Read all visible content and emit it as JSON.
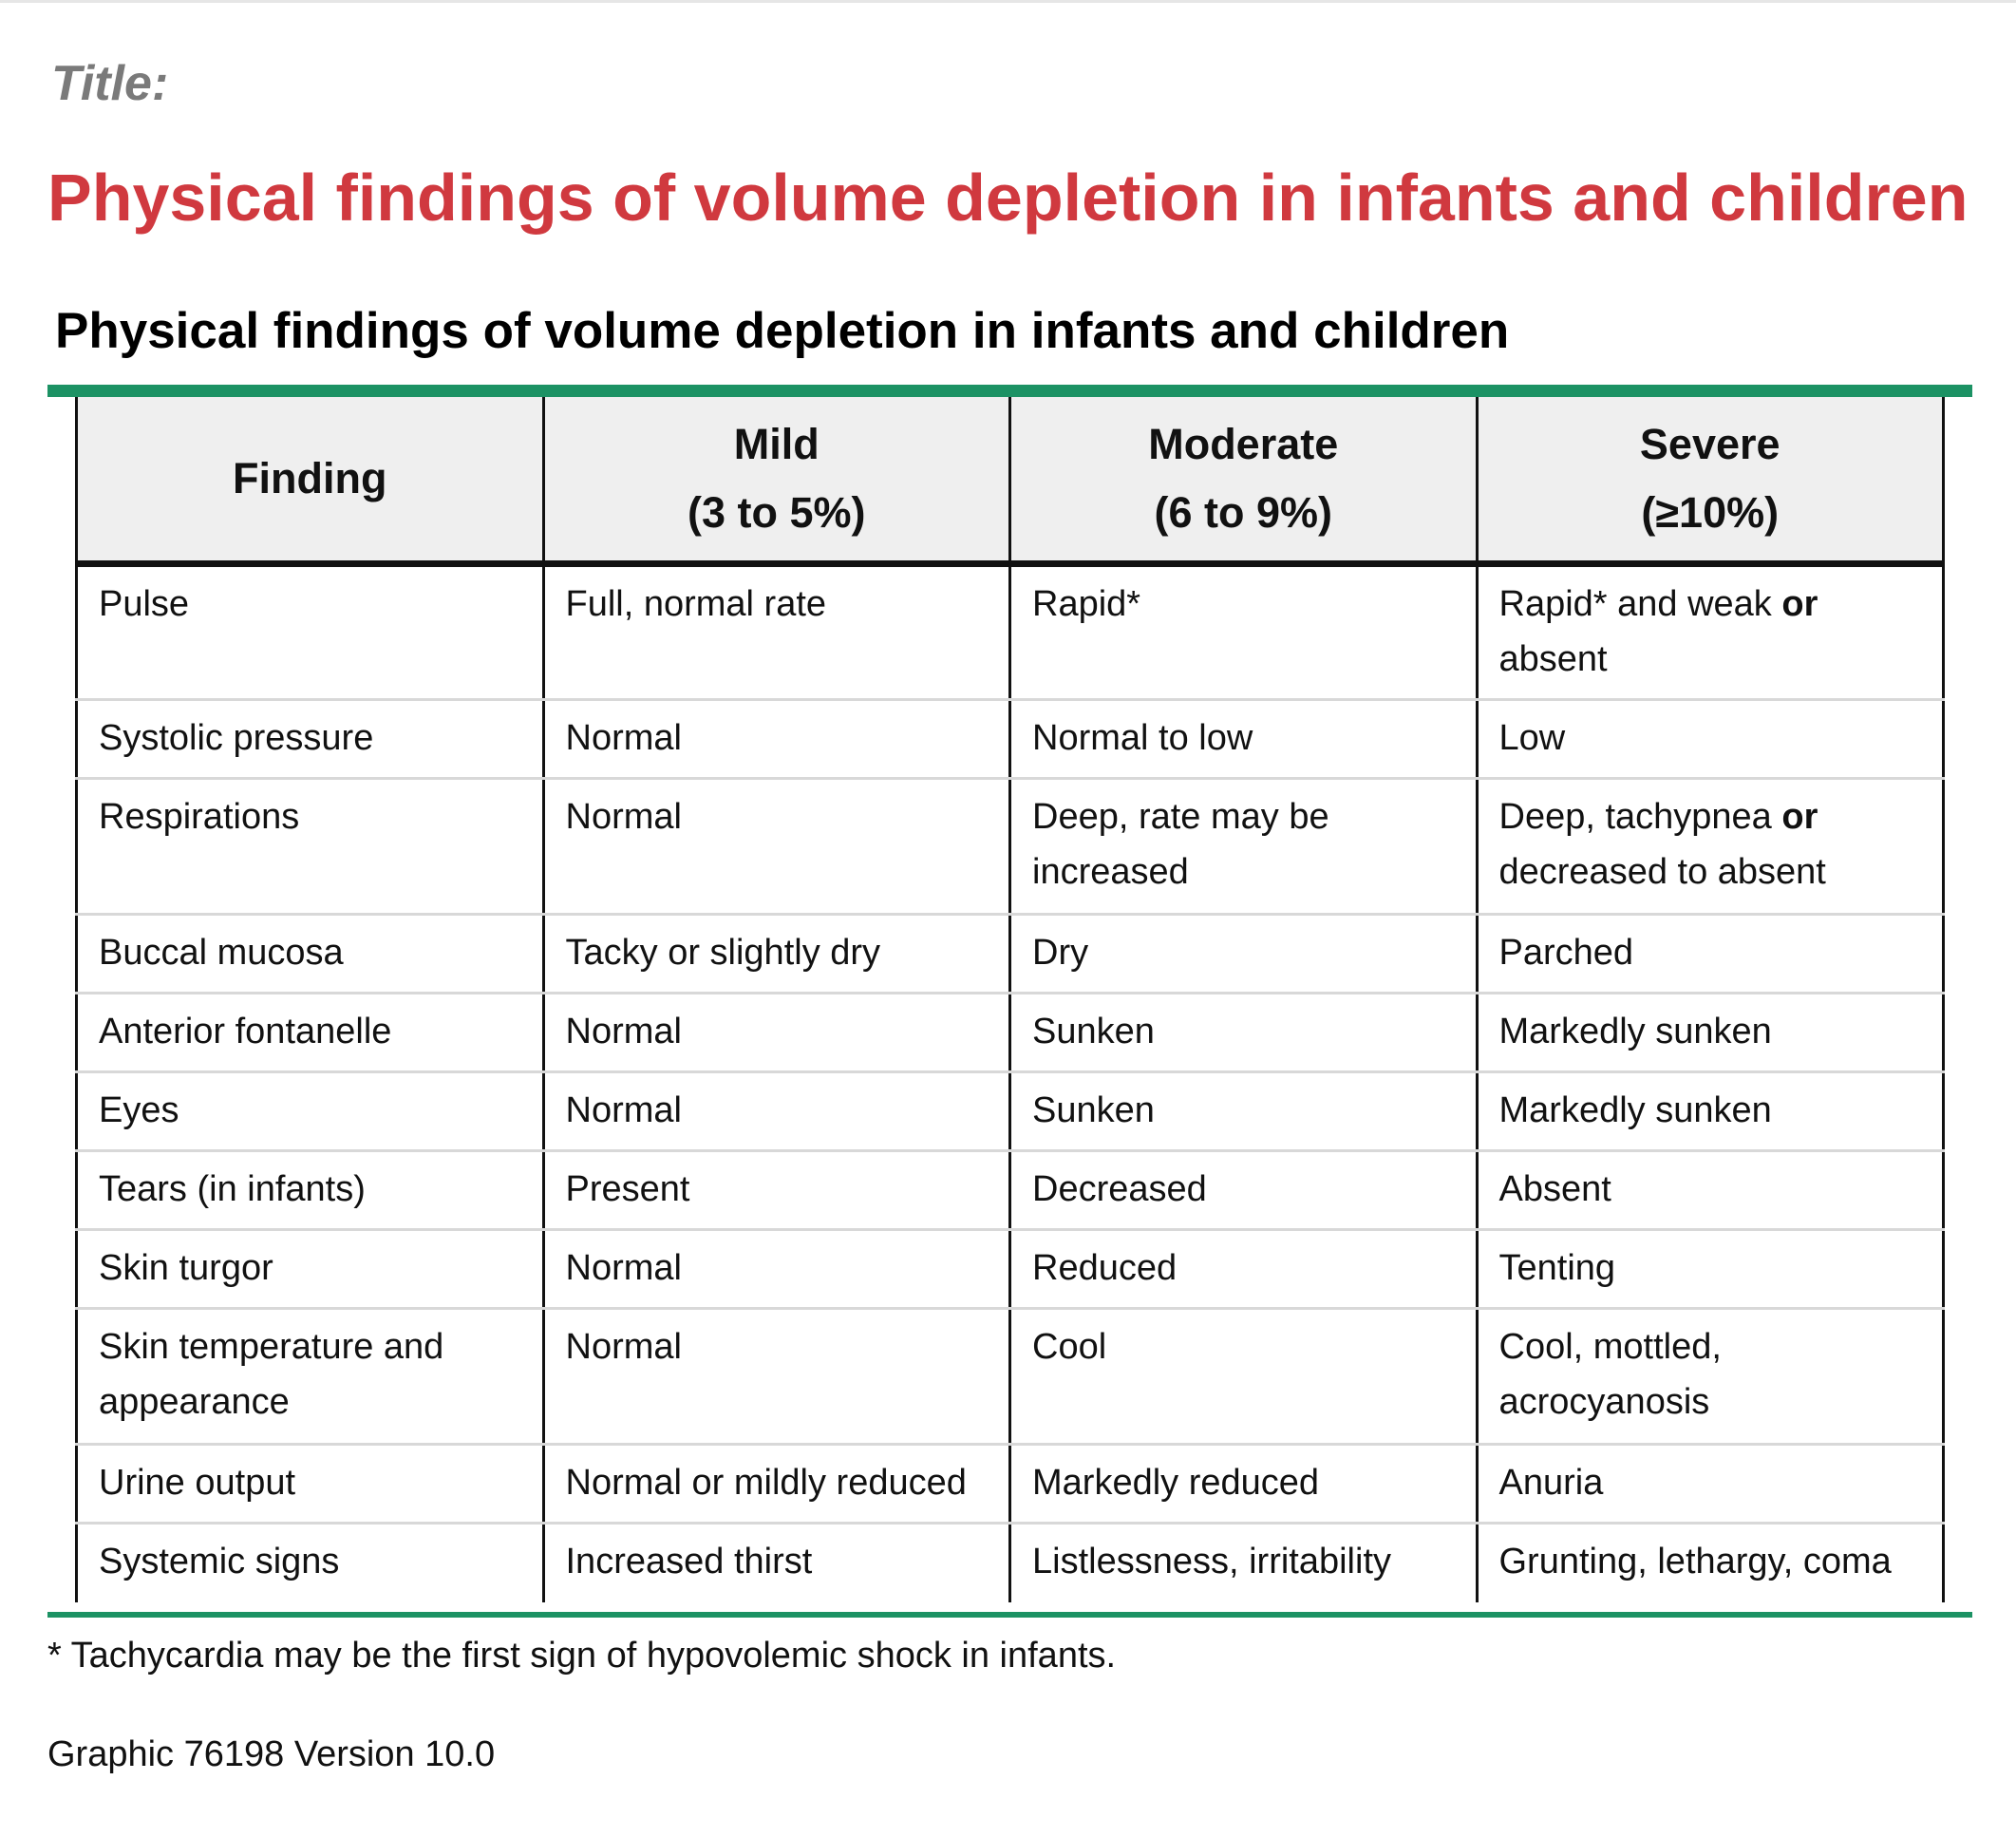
{
  "title_label": "Title:",
  "page_title": "Physical findings of volume depletion in infants and children",
  "graphic_heading": "Physical findings of volume depletion in infants and children",
  "table": {
    "headers": [
      {
        "line1": "Finding",
        "line2": ""
      },
      {
        "line1": "Mild",
        "line2": "(3 to 5%)"
      },
      {
        "line1": "Moderate",
        "line2": "(6 to 9%)"
      },
      {
        "line1": "Severe",
        "line2": "(≥10%)"
      }
    ],
    "rows": [
      {
        "finding": "Pulse",
        "mild": "Full, normal rate",
        "moderate": "Rapid*",
        "severe_a": "Rapid* and weak",
        "severe_conj": "or",
        "severe_b": "absent"
      },
      {
        "finding": "Systolic pressure",
        "mild": "Normal",
        "moderate": "Normal to low",
        "severe": "Low"
      },
      {
        "finding": "Respirations",
        "mild": "Normal",
        "moderate_a": "Deep, rate may be",
        "moderate_b": "increased",
        "severe_a": "Deep, tachypnea",
        "severe_conj": "or",
        "severe_b": "decreased to absent"
      },
      {
        "finding": "Buccal mucosa",
        "mild": "Tacky or slightly dry",
        "moderate": "Dry",
        "severe": "Parched"
      },
      {
        "finding": "Anterior fontanelle",
        "mild": "Normal",
        "moderate": "Sunken",
        "severe": "Markedly sunken"
      },
      {
        "finding": "Eyes",
        "mild": "Normal",
        "moderate": "Sunken",
        "severe": "Markedly sunken"
      },
      {
        "finding": "Tears (in infants)",
        "mild": "Present",
        "moderate": "Decreased",
        "severe": "Absent"
      },
      {
        "finding": "Skin turgor",
        "mild": "Normal",
        "moderate": "Reduced",
        "severe": "Tenting"
      },
      {
        "finding_a": "Skin temperature and",
        "finding_b": "appearance",
        "mild": "Normal",
        "moderate": "Cool",
        "severe_a": "Cool, mottled,",
        "severe_b": "acrocyanosis"
      },
      {
        "finding": "Urine output",
        "mild": "Normal or mildly reduced",
        "moderate": "Markedly reduced",
        "severe": "Anuria"
      },
      {
        "finding": "Systemic signs",
        "mild": "Increased thirst",
        "moderate": "Listlessness, irritability",
        "severe": "Grunting, lethargy, coma"
      }
    ]
  },
  "footnote": "* Tachycardia may be the first sign of hypovolemic shock in infants.",
  "graphic_id": "Graphic 76198 Version 10.0",
  "colors": {
    "title_red": "#d0393f",
    "accent_green": "#1c9264",
    "header_bg": "#efefef",
    "label_gray": "#7a7a7a"
  }
}
